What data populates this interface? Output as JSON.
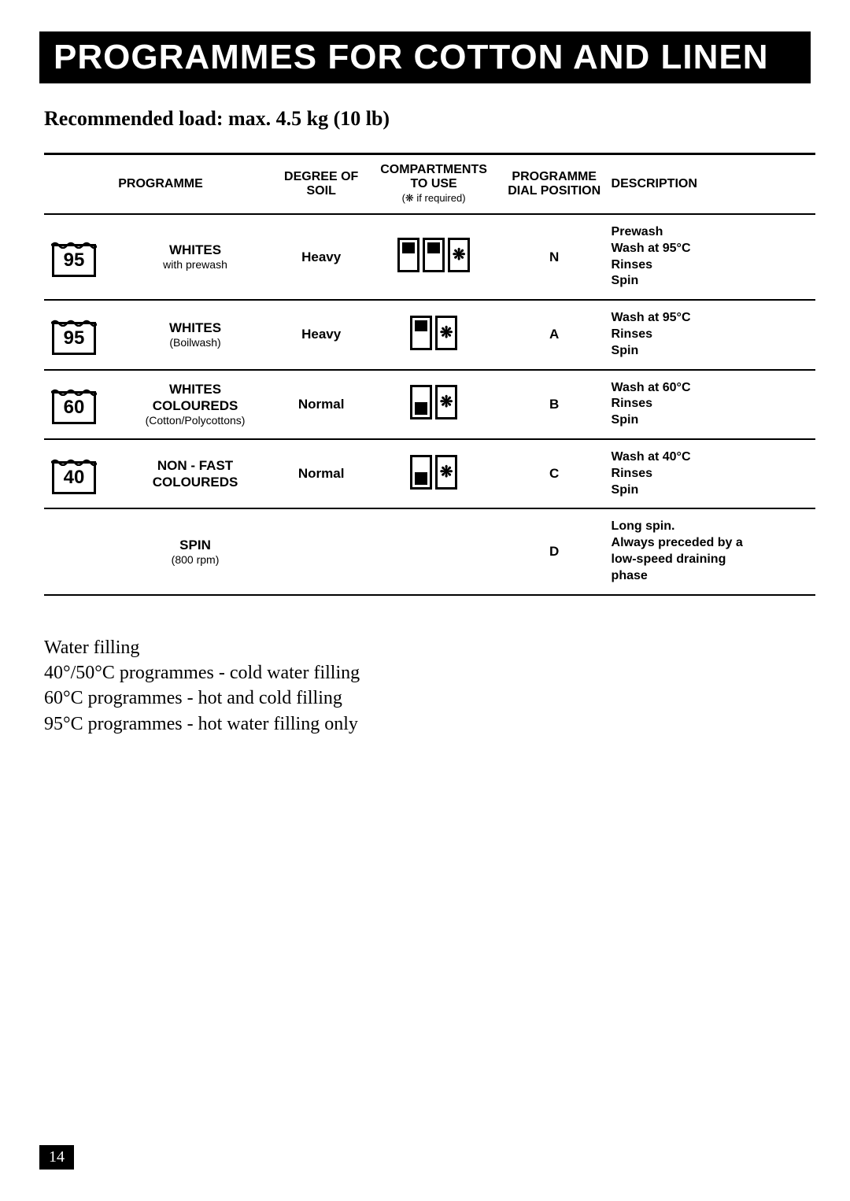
{
  "page": {
    "title": "PROGRAMMES FOR COTTON AND LINEN",
    "subtitle": "Recommended load: max. 4.5 kg (10 lb)",
    "page_number": "14"
  },
  "table": {
    "headers": {
      "programme": "PROGRAMME",
      "soil": "DEGREE OF SOIL",
      "compartments": "COMPARTMENTS TO USE",
      "compartments_sub": "(❋ if required)",
      "dial": "PROGRAMME DIAL POSITION",
      "description": "DESCRIPTION"
    },
    "rows": [
      {
        "temp": "95",
        "name": "WHITES",
        "sub": "with prewash",
        "soil": "Heavy",
        "compartments": [
          "I-filled-dots",
          "II-filled-dots",
          "snow"
        ],
        "dial": "N",
        "desc": [
          "Prewash",
          "Wash at 95°C",
          "Rinses",
          "Spin"
        ]
      },
      {
        "temp": "95",
        "name": "WHITES",
        "sub": "(Boilwash)",
        "soil": "Heavy",
        "compartments": [
          "II-filled-dots",
          "snow"
        ],
        "dial": "A",
        "desc": [
          "Wash at 95°C",
          "Rinses",
          "Spin"
        ]
      },
      {
        "temp": "60",
        "name": "WHITES COLOUREDS",
        "sub": "(Cotton/Polycottons)",
        "soil": "Normal",
        "compartments": [
          "II-filled",
          "snow"
        ],
        "dial": "B",
        "desc": [
          "Wash at 60°C",
          "Rinses",
          "Spin"
        ]
      },
      {
        "temp": "40",
        "name": "NON - FAST COLOUREDS",
        "sub": "",
        "soil": "Normal",
        "compartments": [
          "II-filled",
          "snow"
        ],
        "dial": "C",
        "desc": [
          "Wash at 40°C",
          "Rinses",
          "Spin"
        ]
      },
      {
        "temp": "",
        "name": "SPIN",
        "sub": "(800 rpm)",
        "soil": "",
        "compartments": [],
        "dial": "D",
        "desc": [
          "Long spin.",
          "Always preceded by a",
          "low-speed draining",
          "phase"
        ]
      }
    ]
  },
  "notes": {
    "heading": "Water filling",
    "lines": [
      "40°/50°C programmes - cold water filling",
      "60°C programmes - hot and cold filling",
      "95°C programmes - hot water filling only"
    ]
  }
}
